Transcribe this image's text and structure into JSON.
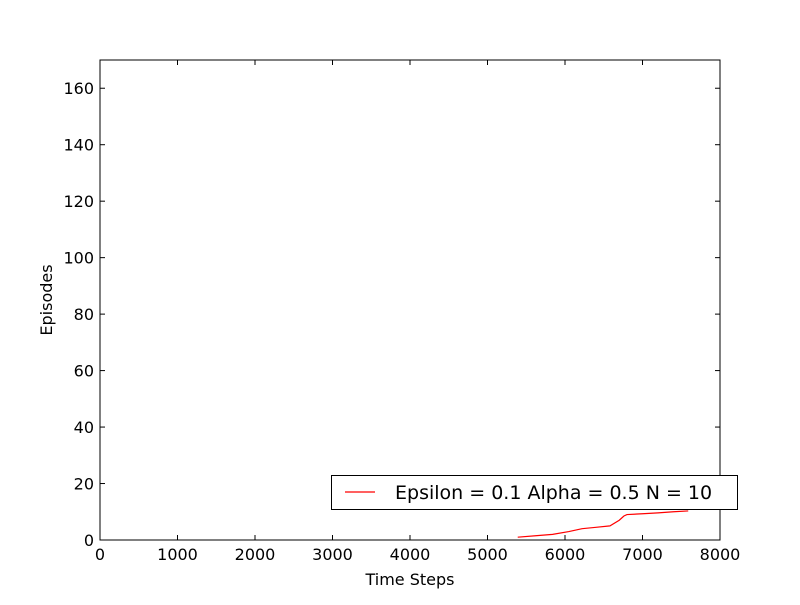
{
  "chart_data": {
    "type": "line",
    "title": "",
    "xlabel": "Time Steps",
    "ylabel": "Episodes",
    "xlim": [
      0,
      8000
    ],
    "ylim": [
      0,
      170
    ],
    "xticks": [
      0,
      1000,
      2000,
      3000,
      4000,
      5000,
      6000,
      7000,
      8000
    ],
    "yticks": [
      0,
      20,
      40,
      60,
      80,
      100,
      120,
      140,
      160
    ],
    "xtick_labels": [
      "0",
      "1000",
      "2000",
      "3000",
      "4000",
      "5000",
      "6000",
      "7000",
      "8000"
    ],
    "ytick_labels": [
      "0",
      "20",
      "40",
      "60",
      "80",
      "100",
      "120",
      "140",
      "160"
    ],
    "grid": false,
    "legend_position": "lower-right",
    "series": [
      {
        "name": "Epsilon = 0.1 Alpha = 0.5 N = 10",
        "color": "#ff0000",
        "x": [
          5390,
          5620,
          5840,
          6050,
          6220,
          6400,
          6580,
          6700,
          6760,
          6800,
          7000,
          7200,
          7400,
          7590
        ],
        "y": [
          1,
          1.5,
          2,
          3,
          4,
          4.5,
          5,
          7,
          8.5,
          9,
          9.3,
          9.6,
          10,
          10.3
        ]
      }
    ]
  }
}
